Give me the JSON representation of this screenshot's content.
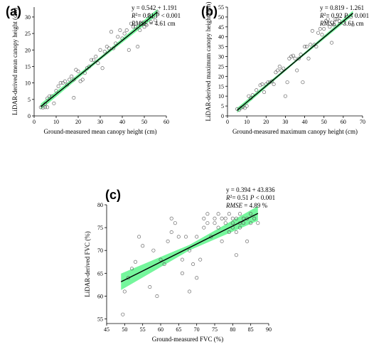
{
  "figure": {
    "chart_data": [
      {
        "type": "scatter",
        "panel_label": "(a)",
        "xlabel": "Ground-measured mean canopy height (cm)",
        "ylabel": "LiDAR-derived mean canopy height (cm)",
        "xlim": [
          0,
          60
        ],
        "ylim": [
          0,
          33
        ],
        "xticks": [
          0,
          10,
          20,
          30,
          40,
          50,
          60
        ],
        "yticks": [
          0,
          5,
          10,
          15,
          20,
          25,
          30
        ],
        "stats": {
          "eq": "y = 0.542 + 1.191",
          "r2_label": "R",
          "r2_value": "= 0.81 ",
          "p_value": " < 0.001",
          "rmse_value": " = 4.61 cm"
        },
        "fit": {
          "slope": 0.542,
          "intercept": 1.191,
          "x_range": [
            3,
            56
          ],
          "ci": [
            0.9,
            0.5,
            0.9
          ]
        },
        "points": [
          [
            3,
            2.6
          ],
          [
            4,
            2.5
          ],
          [
            5,
            2.6
          ],
          [
            6,
            2.6
          ],
          [
            5,
            3.6
          ],
          [
            6,
            5.3
          ],
          [
            7,
            6
          ],
          [
            8,
            6
          ],
          [
            9,
            3.8
          ],
          [
            10,
            7.6
          ],
          [
            11,
            9
          ],
          [
            12,
            10
          ],
          [
            13,
            10
          ],
          [
            14,
            10.5
          ],
          [
            15,
            9.5
          ],
          [
            16,
            11
          ],
          [
            17,
            12
          ],
          [
            18,
            5.5
          ],
          [
            18,
            11
          ],
          [
            19,
            14
          ],
          [
            20,
            13.5
          ],
          [
            21,
            10.5
          ],
          [
            22,
            11
          ],
          [
            23,
            13
          ],
          [
            24,
            14.5
          ],
          [
            25,
            15
          ],
          [
            26,
            17
          ],
          [
            27,
            17
          ],
          [
            28,
            18
          ],
          [
            29,
            16
          ],
          [
            30,
            20
          ],
          [
            31,
            14.5
          ],
          [
            32,
            19.5
          ],
          [
            33,
            21
          ],
          [
            34,
            20.5
          ],
          [
            35,
            25.5
          ],
          [
            36,
            20.5
          ],
          [
            37,
            22
          ],
          [
            38,
            24
          ],
          [
            39,
            26
          ],
          [
            40,
            23.5
          ],
          [
            41,
            25
          ],
          [
            42,
            26
          ],
          [
            43,
            20
          ],
          [
            44,
            28
          ],
          [
            45,
            27
          ],
          [
            46,
            27
          ],
          [
            47,
            21
          ],
          [
            48,
            26
          ],
          [
            49,
            28
          ],
          [
            50,
            27
          ],
          [
            51,
            27.5
          ],
          [
            52,
            30.5
          ],
          [
            53,
            28.5
          ],
          [
            54,
            30
          ],
          [
            55,
            29
          ],
          [
            56,
            31.5
          ]
        ]
      },
      {
        "type": "scatter",
        "panel_label": "(b)",
        "xlabel": "Ground-measured maximum canopy height (cm)",
        "ylabel": "LiDAR-derived maximum canopy height (cm)",
        "xlim": [
          0,
          70
        ],
        "ylim": [
          0,
          55
        ],
        "xticks": [
          0,
          10,
          20,
          30,
          40,
          50,
          60,
          70
        ],
        "yticks": [
          0,
          5,
          10,
          15,
          20,
          25,
          30,
          35,
          40,
          45,
          50,
          55
        ],
        "stats": {
          "eq": "y = 0.819 - 1.261",
          "r2_label": "R",
          "r2_value": "= 0.92 ",
          "p_value": " < 0.001",
          "rmse_value": " = 3.61 cm"
        },
        "fit": {
          "slope": 0.819,
          "intercept": -1.261,
          "x_range": [
            5,
            65
          ],
          "ci": [
            1.2,
            0.6,
            1.2
          ]
        },
        "points": [
          [
            5,
            3.5
          ],
          [
            6,
            3
          ],
          [
            7,
            4
          ],
          [
            8,
            4.5
          ],
          [
            9,
            4
          ],
          [
            10,
            5
          ],
          [
            11,
            10
          ],
          [
            12,
            9
          ],
          [
            13,
            10.5
          ],
          [
            15,
            13
          ],
          [
            17,
            15.5
          ],
          [
            18,
            16
          ],
          [
            19,
            12
          ],
          [
            20,
            16
          ],
          [
            21,
            17
          ],
          [
            22,
            17
          ],
          [
            23,
            17.5
          ],
          [
            24,
            16
          ],
          [
            25,
            22
          ],
          [
            26,
            23
          ],
          [
            27,
            25
          ],
          [
            28,
            23
          ],
          [
            29,
            24
          ],
          [
            30,
            10
          ],
          [
            31,
            17
          ],
          [
            32,
            29
          ],
          [
            33,
            30
          ],
          [
            34,
            30.5
          ],
          [
            35,
            29
          ],
          [
            36,
            23
          ],
          [
            37,
            29
          ],
          [
            38,
            31
          ],
          [
            39,
            17
          ],
          [
            40,
            35
          ],
          [
            41,
            35
          ],
          [
            42,
            29
          ],
          [
            43,
            36
          ],
          [
            44,
            43
          ],
          [
            45,
            36
          ],
          [
            46,
            35
          ],
          [
            47,
            42
          ],
          [
            48,
            44
          ],
          [
            49,
            41
          ],
          [
            50,
            44
          ],
          [
            51,
            48
          ],
          [
            52,
            49
          ],
          [
            53,
            45
          ],
          [
            54,
            37
          ],
          [
            55,
            46
          ],
          [
            56,
            49
          ],
          [
            57,
            49
          ],
          [
            58,
            48
          ],
          [
            60,
            47
          ],
          [
            62,
            50
          ],
          [
            64,
            50
          ],
          [
            65,
            46
          ]
        ]
      },
      {
        "type": "scatter",
        "panel_label": "(c)",
        "xlabel": "Ground-measured FVC (%)",
        "ylabel": "LiDAR-derived FVC (%)",
        "xlim": [
          45,
          90
        ],
        "ylim": [
          54,
          80
        ],
        "xticks": [
          45,
          50,
          55,
          60,
          65,
          70,
          75,
          80,
          85,
          90
        ],
        "yticks": [
          55,
          60,
          65,
          70,
          75,
          80
        ],
        "stats": {
          "eq": "y = 0.394 + 43.836",
          "r2_label": "R",
          "r2_value": "= 0.51 ",
          "p_value": " < 0.001",
          "rmse_value": " = 4.89 %"
        },
        "fit": {
          "slope": 0.394,
          "intercept": 43.836,
          "x_range": [
            49,
            87
          ],
          "ci": [
            1.8,
            0.6,
            1.6
          ]
        },
        "points": [
          [
            49.5,
            56
          ],
          [
            50,
            61
          ],
          [
            51,
            64
          ],
          [
            52,
            66
          ],
          [
            53,
            67.5
          ],
          [
            54,
            73
          ],
          [
            55,
            71
          ],
          [
            57,
            62
          ],
          [
            58,
            70
          ],
          [
            59,
            60
          ],
          [
            60,
            68
          ],
          [
            61,
            67
          ],
          [
            62,
            72
          ],
          [
            63,
            74
          ],
          [
            63,
            77
          ],
          [
            64,
            76
          ],
          [
            65,
            73
          ],
          [
            66,
            68
          ],
          [
            66,
            65
          ],
          [
            67,
            73
          ],
          [
            68,
            61
          ],
          [
            68,
            70
          ],
          [
            69,
            67
          ],
          [
            70,
            64
          ],
          [
            70,
            73
          ],
          [
            71,
            68
          ],
          [
            72,
            75
          ],
          [
            72,
            77
          ],
          [
            73,
            76
          ],
          [
            73,
            78
          ],
          [
            74,
            73
          ],
          [
            75,
            77
          ],
          [
            75,
            76
          ],
          [
            76,
            78
          ],
          [
            76,
            75
          ],
          [
            77,
            72
          ],
          [
            77,
            77
          ],
          [
            78,
            76
          ],
          [
            78,
            77
          ],
          [
            79,
            78
          ],
          [
            79,
            74
          ],
          [
            80,
            75
          ],
          [
            80,
            77
          ],
          [
            80,
            76
          ],
          [
            81,
            74
          ],
          [
            81,
            69
          ],
          [
            81,
            77
          ],
          [
            82,
            78
          ],
          [
            82,
            76
          ],
          [
            82,
            75
          ],
          [
            83,
            77
          ],
          [
            83,
            76
          ],
          [
            84,
            72
          ],
          [
            84,
            77
          ],
          [
            85,
            76
          ],
          [
            85,
            78
          ],
          [
            86,
            77
          ],
          [
            87,
            76
          ]
        ]
      }
    ]
  }
}
